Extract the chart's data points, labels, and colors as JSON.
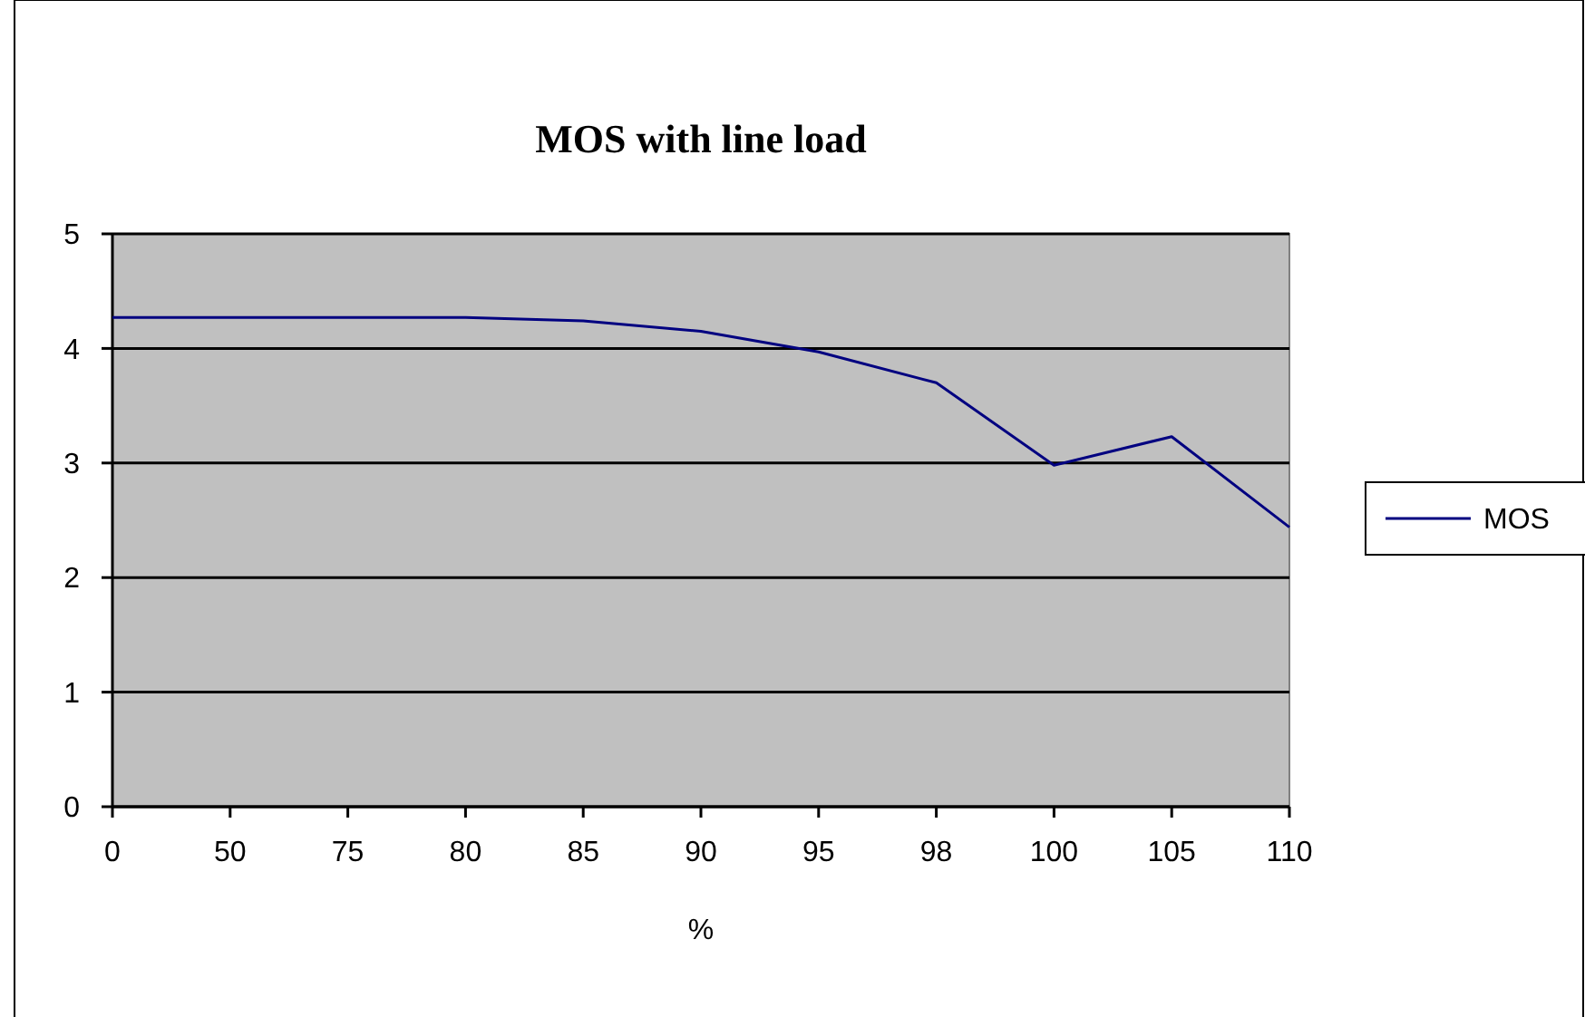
{
  "chart_data": {
    "type": "line",
    "title": "MOS with line load",
    "xlabel": "%",
    "categories": [
      "0",
      "50",
      "75",
      "80",
      "85",
      "90",
      "95",
      "98",
      "100",
      "105",
      "110"
    ],
    "series": [
      {
        "name": "MOS",
        "color": "#000080",
        "values": [
          4.27,
          4.27,
          4.27,
          4.27,
          4.24,
          4.15,
          3.97,
          3.7,
          2.98,
          3.23,
          2.44
        ]
      }
    ],
    "ylim": [
      0,
      5
    ],
    "yticks": [
      0,
      1,
      2,
      3,
      4,
      5
    ],
    "grid": "y",
    "legend": "right",
    "marker": "none",
    "line_style": "solid"
  }
}
